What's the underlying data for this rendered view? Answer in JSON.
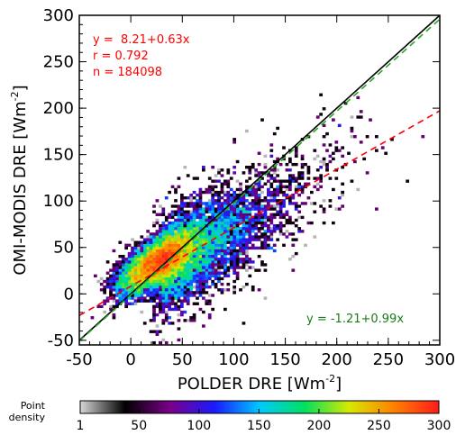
{
  "chart_data": {
    "type": "scatter",
    "style": "density-heatmap",
    "xlabel": "POLDER DRE",
    "xunit_base": "Wm",
    "xunit_exp": "-2",
    "ylabel": "OMI-MODIS DRE",
    "yunit_base": "Wm",
    "yunit_exp": "-2",
    "xlim": [
      -50,
      300
    ],
    "ylim": [
      -55,
      300
    ],
    "xticks": [
      "-50",
      "0",
      "50",
      "100",
      "150",
      "200",
      "250",
      "300"
    ],
    "yticks": [
      "-50",
      "0",
      "50",
      "100",
      "150",
      "200",
      "250",
      "300"
    ],
    "lines": [
      {
        "kind": "one-to-one",
        "color": "#000000",
        "dash": false,
        "intercept": 0,
        "slope": 1
      },
      {
        "kind": "fit",
        "color": "#ff0000",
        "dash": true,
        "intercept": 8.21,
        "slope": 0.63
      },
      {
        "kind": "fit",
        "color": "#22aa22",
        "dash": true,
        "intercept": -1.21,
        "slope": 0.99
      }
    ],
    "annotations": {
      "red_eq": "y =  8.21+0.63x",
      "red_r": "r = 0.792",
      "red_n": "n = 184098",
      "green_eq": "y = -1.21+0.99x"
    },
    "colorbar": {
      "title_line1": "Point",
      "title_line2": "density",
      "range": [
        1,
        300
      ],
      "tick_labels": [
        "1",
        "50",
        "100",
        "150",
        "200",
        "250",
        "300"
      ],
      "colors": [
        "#d8d8d8",
        "#000000",
        "#7a0088",
        "#1a1aff",
        "#00c8ff",
        "#00e060",
        "#d8e800",
        "#ff8000",
        "#ff1a1a"
      ]
    }
  }
}
